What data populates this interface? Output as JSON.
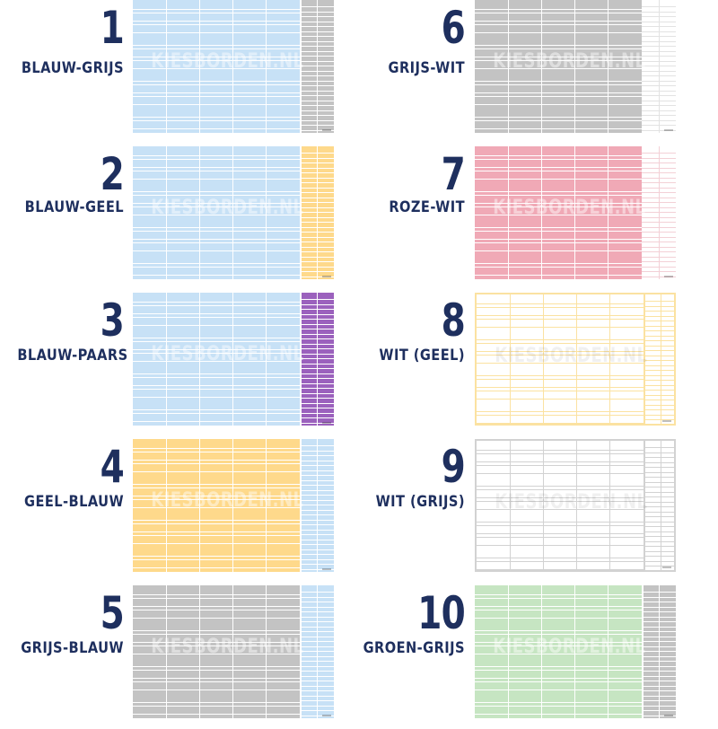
{
  "watermark": "KIESBORDEN.NL",
  "boards": [
    {
      "number": "1",
      "name": "BLAUW-GRIJS",
      "main_color": "#c7e1f6",
      "side_color": "#c3c3c3",
      "line_color": "#ffffff",
      "border_color": ""
    },
    {
      "number": "2",
      "name": "BLAUW-GEEL",
      "main_color": "#c7e1f6",
      "side_color": "#fed98b",
      "line_color": "#ffffff",
      "border_color": ""
    },
    {
      "number": "3",
      "name": "BLAUW-PAARS",
      "main_color": "#c7e1f6",
      "side_color": "#9b61bd",
      "line_color": "#ffffff",
      "border_color": ""
    },
    {
      "number": "4",
      "name": "GEEL-BLAUW",
      "main_color": "#fed98b",
      "side_color": "#c7e1f6",
      "line_color": "#ffffff",
      "border_color": ""
    },
    {
      "number": "5",
      "name": "GRIJS-BLAUW",
      "main_color": "#c3c3c3",
      "side_color": "#c7e1f6",
      "line_color": "#ffffff",
      "border_color": ""
    },
    {
      "number": "6",
      "name": "GRIJS-WIT",
      "main_color": "#c3c3c3",
      "side_color": "#ffffff",
      "line_color": "#ffffff",
      "border_color": "",
      "side_line_color": "#e2e2e2"
    },
    {
      "number": "7",
      "name": "ROZE-WIT",
      "main_color": "#f0a9b6",
      "side_color": "#ffffff",
      "line_color": "#ffffff",
      "border_color": "",
      "side_line_color": "#f3d0d6"
    },
    {
      "number": "8",
      "name": "WIT (GEEL)",
      "main_color": "#ffffff",
      "side_color": "#ffffff",
      "line_color": "#fbe2a1",
      "border_color": "#fbe2a1"
    },
    {
      "number": "9",
      "name": "WIT (GRIJS)",
      "main_color": "#ffffff",
      "side_color": "#ffffff",
      "line_color": "#d2d2d2",
      "border_color": "#d2d2d2"
    },
    {
      "number": "10",
      "name": "GROEN-GRIJS",
      "main_color": "#c6e5c2",
      "side_color": "#c3c3c3",
      "line_color": "#ffffff",
      "border_color": ""
    }
  ]
}
